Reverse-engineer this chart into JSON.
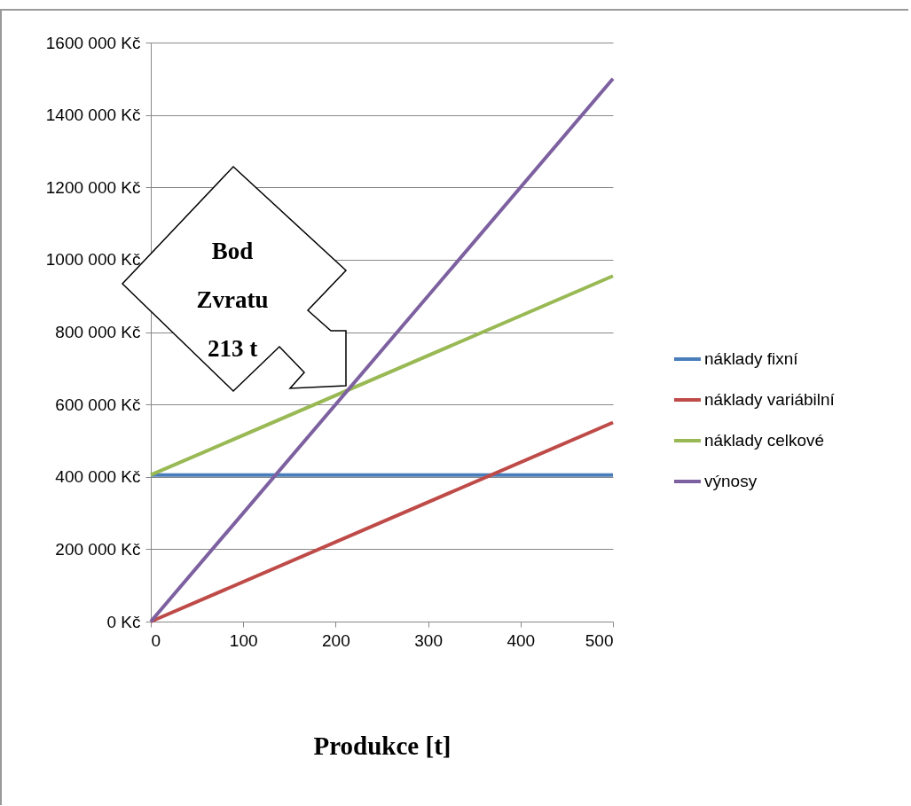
{
  "chart_data": {
    "type": "line",
    "xlabel": "Produkce [t]",
    "x": [
      0,
      500
    ],
    "series": [
      {
        "name": "náklady fixní",
        "color": "#4a7ebb",
        "values": [
          405000,
          405000
        ]
      },
      {
        "name": "náklady variábilní",
        "color": "#be4b48",
        "values": [
          0,
          550000
        ]
      },
      {
        "name": "náklady celkové",
        "color": "#98b954",
        "values": [
          405000,
          955000
        ]
      },
      {
        "name": "výnosy",
        "color": "#7d60a0",
        "values": [
          0,
          1500000
        ]
      }
    ],
    "xlim": [
      0,
      500
    ],
    "xticks": [
      0,
      100,
      200,
      300,
      400,
      500
    ],
    "ylim": [
      0,
      1600000
    ],
    "yticks": [
      {
        "value": 0,
        "label": "0 Kč"
      },
      {
        "value": 200000,
        "label": "200 000 Kč"
      },
      {
        "value": 400000,
        "label": "400 000 Kč"
      },
      {
        "value": 600000,
        "label": "600 000 Kč"
      },
      {
        "value": 800000,
        "label": "800 000 Kč"
      },
      {
        "value": 1000000,
        "label": "1000 000 Kč"
      },
      {
        "value": 1200000,
        "label": "1200 000 Kč"
      },
      {
        "value": 1400000,
        "label": "1400 000 Kč"
      },
      {
        "value": 1600000,
        "label": "1600 000 Kč"
      }
    ],
    "grid": "y",
    "legend": "right",
    "annotations": [
      "Bod\nZvratu\n213 t"
    ]
  }
}
